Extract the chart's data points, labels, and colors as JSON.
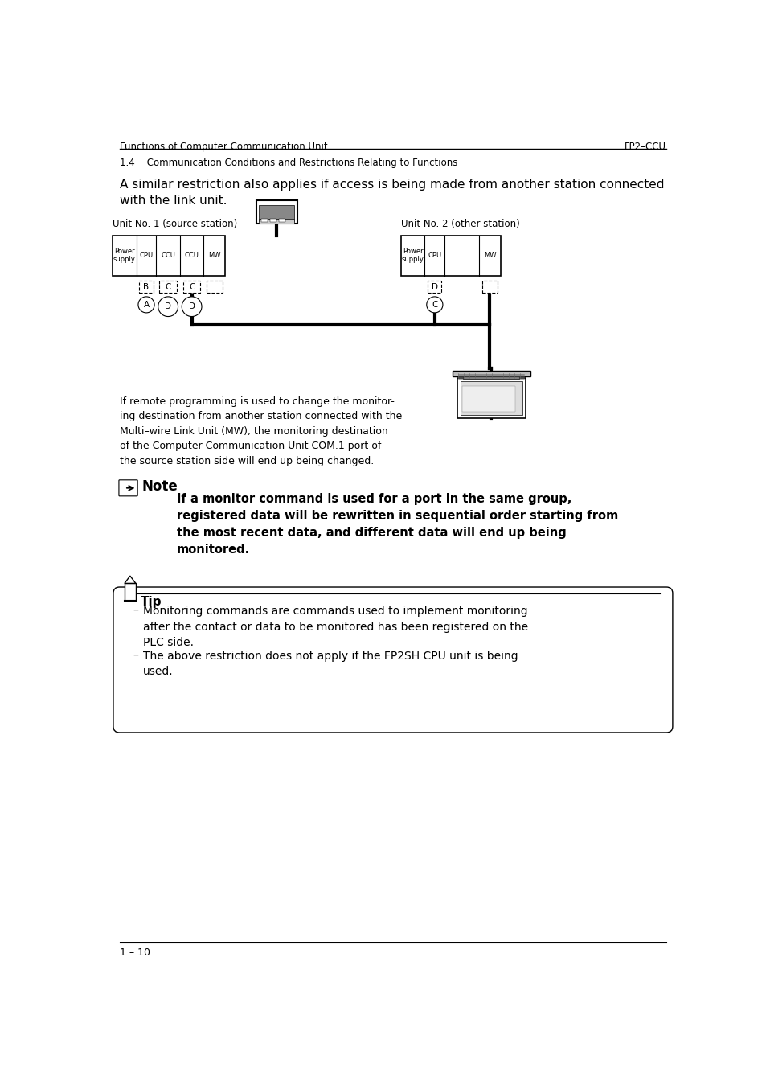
{
  "header_left": "Functions of Computer Communication Unit",
  "header_right": "FP2–CCU",
  "section": "1.4    Communication Conditions and Restrictions Relating to Functions",
  "intro_text": "A similar restriction also applies if access is being made from another station connected\nwith the link unit.",
  "unit1_label": "Unit No. 1 (source station)",
  "unit2_label": "Unit No. 2 (other station)",
  "note_title": "Note",
  "note_text": "If a monitor command is used for a port in the same group,\nregistered data will be rewritten in sequential order starting from\nthe most recent data, and different data will end up being\nmonitored.",
  "desc_text": "If remote programming is used to change the monitor-\ning destination from another station connected with the\nMulti–wire Link Unit (MW), the monitoring destination\nof the Computer Communication Unit COM.1 port of\nthe source station side will end up being changed.",
  "tip_title": "Tip",
  "tip_bullet1": "Monitoring commands are commands used to implement monitoring\nafter the contact or data to be monitored has been registered on the\nPLC side.",
  "tip_bullet2": "The above restriction does not apply if the FP2SH CPU unit is being\nused.",
  "footer_text": "1 – 10",
  "bg_color": "#ffffff",
  "text_color": "#000000"
}
